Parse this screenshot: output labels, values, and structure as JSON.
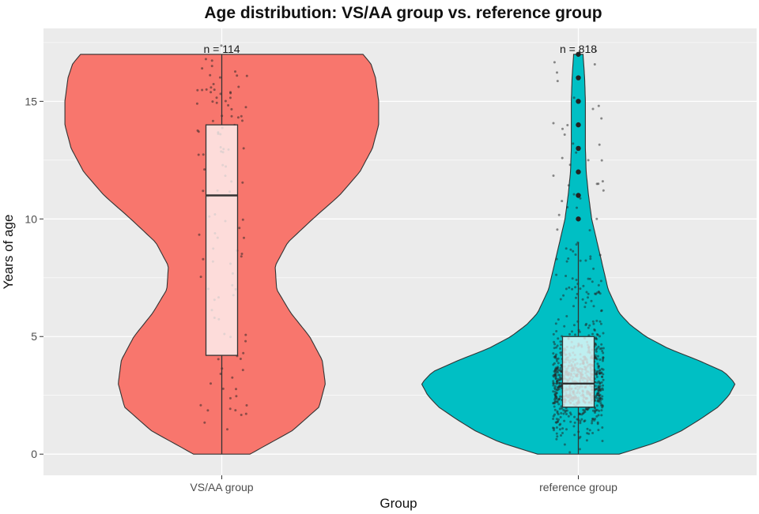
{
  "chart_data": {
    "type": "violin",
    "title": "Age distribution: VS/AA group vs. reference group",
    "xlabel": "Group",
    "ylabel": "Years of age",
    "ylim": [
      -0.9,
      18.1
    ],
    "yticks": [
      0,
      5,
      10,
      15
    ],
    "grid": true,
    "categories": [
      "VS/AA group",
      "reference group"
    ],
    "colors": {
      "VS/AA group": "#F8766D",
      "reference group": "#00BFC4",
      "box_fill": "#ffffff",
      "outline": "#333333",
      "points": "#222222",
      "panel": "#ebebeb",
      "grid": "#ffffff"
    },
    "groups": [
      {
        "name": "VS/AA group",
        "n_label": "n = 114",
        "n": 114,
        "box": {
          "min": 0,
          "q1": 4.2,
          "median": 11,
          "q3": 14,
          "max": 17
        },
        "density_profile": [
          {
            "y": 0,
            "w": 0.18
          },
          {
            "y": 1,
            "w": 0.45
          },
          {
            "y": 2,
            "w": 0.62
          },
          {
            "y": 3,
            "w": 0.66
          },
          {
            "y": 4,
            "w": 0.64
          },
          {
            "y": 5,
            "w": 0.56
          },
          {
            "y": 6,
            "w": 0.44
          },
          {
            "y": 7,
            "w": 0.35
          },
          {
            "y": 8,
            "w": 0.34
          },
          {
            "y": 9,
            "w": 0.42
          },
          {
            "y": 10,
            "w": 0.58
          },
          {
            "y": 11,
            "w": 0.75
          },
          {
            "y": 12,
            "w": 0.88
          },
          {
            "y": 13,
            "w": 0.96
          },
          {
            "y": 14,
            "w": 1.0
          },
          {
            "y": 15,
            "w": 1.0
          },
          {
            "y": 16,
            "w": 0.98
          },
          {
            "y": 16.6,
            "w": 0.95
          },
          {
            "y": 17,
            "w": 0.9
          }
        ],
        "density_scale": 0.44
      },
      {
        "name": "reference group",
        "n_label": "n = 818",
        "n": 818,
        "box": {
          "min": 0,
          "q1": 2,
          "median": 3,
          "q3": 5,
          "max": 9,
          "outliers": [
            10,
            11,
            12,
            13,
            14,
            15,
            16,
            17
          ]
        },
        "density_profile": [
          {
            "y": 0,
            "w": 0.26
          },
          {
            "y": 0.5,
            "w": 0.5
          },
          {
            "y": 1,
            "w": 0.66
          },
          {
            "y": 1.5,
            "w": 0.78
          },
          {
            "y": 2,
            "w": 0.89
          },
          {
            "y": 2.5,
            "w": 0.96
          },
          {
            "y": 3,
            "w": 1.0
          },
          {
            "y": 3.5,
            "w": 0.93
          },
          {
            "y": 4,
            "w": 0.76
          },
          {
            "y": 4.5,
            "w": 0.57
          },
          {
            "y": 5,
            "w": 0.43
          },
          {
            "y": 5.5,
            "w": 0.33
          },
          {
            "y": 6,
            "w": 0.26
          },
          {
            "y": 7,
            "w": 0.19
          },
          {
            "y": 8,
            "w": 0.155
          },
          {
            "y": 9,
            "w": 0.12
          },
          {
            "y": 10,
            "w": 0.085
          },
          {
            "y": 11,
            "w": 0.065
          },
          {
            "y": 12,
            "w": 0.05
          },
          {
            "y": 13,
            "w": 0.045
          },
          {
            "y": 14,
            "w": 0.045
          },
          {
            "y": 15,
            "w": 0.045
          },
          {
            "y": 16,
            "w": 0.04
          },
          {
            "y": 17,
            "w": 0.03
          }
        ],
        "density_scale": 0.44
      }
    ]
  }
}
